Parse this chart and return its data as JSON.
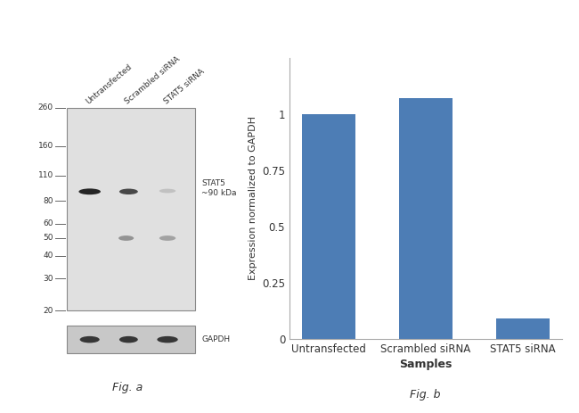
{
  "bar_categories": [
    "Untransfected",
    "Scrambled siRNA",
    "STAT5 siRNA"
  ],
  "bar_values": [
    1.0,
    1.07,
    0.09
  ],
  "bar_color": "#4d7db5",
  "ylabel": "Expression normalized to GAPDH",
  "xlabel": "Samples",
  "yticks": [
    0,
    0.25,
    0.5,
    0.75,
    1
  ],
  "ylim": [
    0,
    1.25
  ],
  "fig_b_label": "Fig. b",
  "fig_a_label": "Fig. a",
  "wb_marker_labels": [
    "260",
    "160",
    "110",
    "80",
    "60",
    "50",
    "40",
    "30",
    "20"
  ],
  "wb_marker_kdas": [
    260,
    160,
    110,
    80,
    60,
    50,
    40,
    30,
    20
  ],
  "stat5_label": "STAT5\n~90 kDa",
  "gapdh_label": "GAPDH",
  "lane_labels": [
    "Untransfected",
    "Scrambled siRNA",
    "STAT5 siRNA"
  ],
  "background_color": "#ffffff",
  "blot_bg": "#e0e0e0",
  "gapdh_box_bg": "#c8c8c8"
}
